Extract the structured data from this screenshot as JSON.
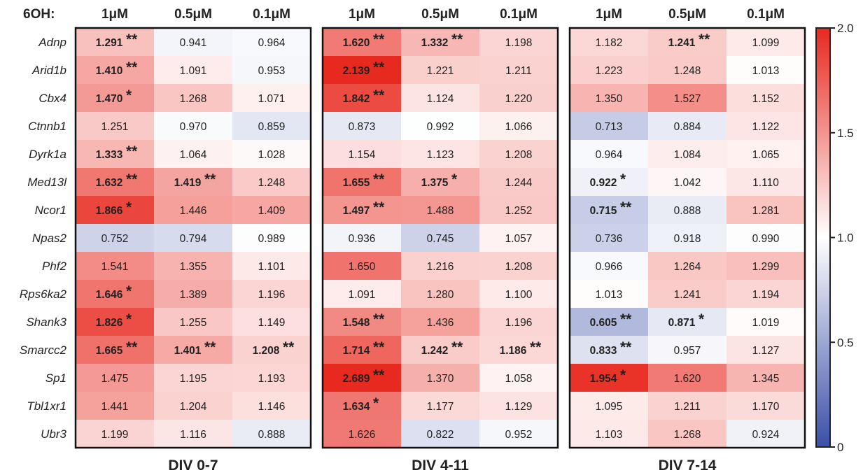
{
  "chart_data": {
    "type": "heatmap",
    "dose_label": "6OH:",
    "doses": [
      "1μM",
      "0.5μM",
      "0.1μM"
    ],
    "genes": [
      "Adnp",
      "Arid1b",
      "Cbx4",
      "Ctnnb1",
      "Dyrk1a",
      "Med13l",
      "Ncor1",
      "Npas2",
      "Phf2",
      "Rps6ka2",
      "Shank3",
      "Smarcc2",
      "Sp1",
      "Tbl1xr1",
      "Ubr3"
    ],
    "panels": [
      {
        "name": "DIV 0-7",
        "values": [
          [
            1.291,
            0.941,
            0.964
          ],
          [
            1.41,
            1.091,
            0.953
          ],
          [
            1.47,
            1.268,
            1.071
          ],
          [
            1.251,
            0.97,
            0.859
          ],
          [
            1.333,
            1.064,
            1.028
          ],
          [
            1.632,
            1.419,
            1.248
          ],
          [
            1.866,
            1.446,
            1.409
          ],
          [
            0.752,
            0.794,
            0.989
          ],
          [
            1.541,
            1.355,
            1.101
          ],
          [
            1.646,
            1.389,
            1.196
          ],
          [
            1.826,
            1.255,
            1.149
          ],
          [
            1.665,
            1.401,
            1.208
          ],
          [
            1.475,
            1.195,
            1.193
          ],
          [
            1.441,
            1.204,
            1.146
          ],
          [
            1.199,
            1.116,
            0.888
          ]
        ],
        "significance": [
          [
            "**",
            "",
            ""
          ],
          [
            "**",
            "",
            ""
          ],
          [
            "*",
            "",
            ""
          ],
          [
            "",
            "",
            ""
          ],
          [
            "**",
            "",
            ""
          ],
          [
            "**",
            "**",
            ""
          ],
          [
            "*",
            "",
            ""
          ],
          [
            "",
            "",
            ""
          ],
          [
            "",
            "",
            ""
          ],
          [
            "*",
            "",
            ""
          ],
          [
            "*",
            "",
            ""
          ],
          [
            "**",
            "**",
            "**"
          ],
          [
            "",
            "",
            ""
          ],
          [
            "",
            "",
            ""
          ],
          [
            "",
            "",
            ""
          ]
        ]
      },
      {
        "name": "DIV 4-11",
        "values": [
          [
            1.62,
            1.332,
            1.198
          ],
          [
            2.139,
            1.221,
            1.211
          ],
          [
            1.842,
            1.124,
            1.22
          ],
          [
            0.873,
            0.992,
            1.066
          ],
          [
            1.154,
            1.123,
            1.208
          ],
          [
            1.655,
            1.375,
            1.244
          ],
          [
            1.497,
            1.488,
            1.252
          ],
          [
            0.936,
            0.745,
            1.057
          ],
          [
            1.65,
            1.216,
            1.208
          ],
          [
            1.091,
            1.28,
            1.1
          ],
          [
            1.548,
            1.436,
            1.196
          ],
          [
            1.714,
            1.242,
            1.186
          ],
          [
            2.689,
            1.37,
            1.058
          ],
          [
            1.634,
            1.177,
            1.129
          ],
          [
            1.626,
            0.822,
            0.952
          ]
        ],
        "significance": [
          [
            "**",
            "**",
            ""
          ],
          [
            "**",
            "",
            ""
          ],
          [
            "**",
            "",
            ""
          ],
          [
            "",
            "",
            ""
          ],
          [
            "",
            "",
            ""
          ],
          [
            "**",
            "*",
            ""
          ],
          [
            "**",
            "",
            ""
          ],
          [
            "",
            "",
            ""
          ],
          [
            "",
            "",
            ""
          ],
          [
            "",
            "",
            ""
          ],
          [
            "**",
            "",
            ""
          ],
          [
            "**",
            "**",
            "**"
          ],
          [
            "**",
            "",
            ""
          ],
          [
            "*",
            "",
            ""
          ],
          [
            "",
            "",
            ""
          ]
        ]
      },
      {
        "name": "DIV 7-14",
        "values": [
          [
            1.182,
            1.241,
            1.099
          ],
          [
            1.223,
            1.248,
            1.013
          ],
          [
            1.35,
            1.527,
            1.152
          ],
          [
            0.713,
            0.884,
            1.122
          ],
          [
            0.964,
            1.084,
            1.065
          ],
          [
            0.922,
            1.042,
            1.11
          ],
          [
            0.715,
            0.888,
            1.281
          ],
          [
            0.736,
            0.918,
            0.99
          ],
          [
            0.966,
            1.264,
            1.299
          ],
          [
            1.013,
            1.241,
            1.194
          ],
          [
            0.605,
            0.871,
            1.019
          ],
          [
            0.833,
            0.957,
            1.127
          ],
          [
            1.954,
            1.62,
            1.345
          ],
          [
            1.095,
            1.211,
            1.17
          ],
          [
            1.103,
            1.268,
            0.924
          ]
        ],
        "significance": [
          [
            "",
            "**",
            ""
          ],
          [
            "",
            "",
            ""
          ],
          [
            "",
            "",
            ""
          ],
          [
            "",
            "",
            ""
          ],
          [
            "",
            "",
            ""
          ],
          [
            "*",
            "",
            ""
          ],
          [
            "**",
            "",
            ""
          ],
          [
            "",
            "",
            ""
          ],
          [
            "",
            "",
            ""
          ],
          [
            "",
            "",
            ""
          ],
          [
            "**",
            "*",
            ""
          ],
          [
            "**",
            "",
            ""
          ],
          [
            "*",
            "",
            ""
          ],
          [
            "",
            "",
            ""
          ],
          [
            "",
            "",
            ""
          ]
        ]
      }
    ],
    "colorbar": {
      "range": [
        0,
        2.0
      ],
      "center": 1.0,
      "ticks": [
        "0",
        "0.5",
        "1.0",
        "1.5",
        "2.0"
      ],
      "tick_values": [
        0,
        0.5,
        1.0,
        1.5,
        2.0
      ],
      "low_color": "#3a4fa8",
      "mid_color": "#ffffff",
      "high_color": "#e8291f"
    }
  }
}
